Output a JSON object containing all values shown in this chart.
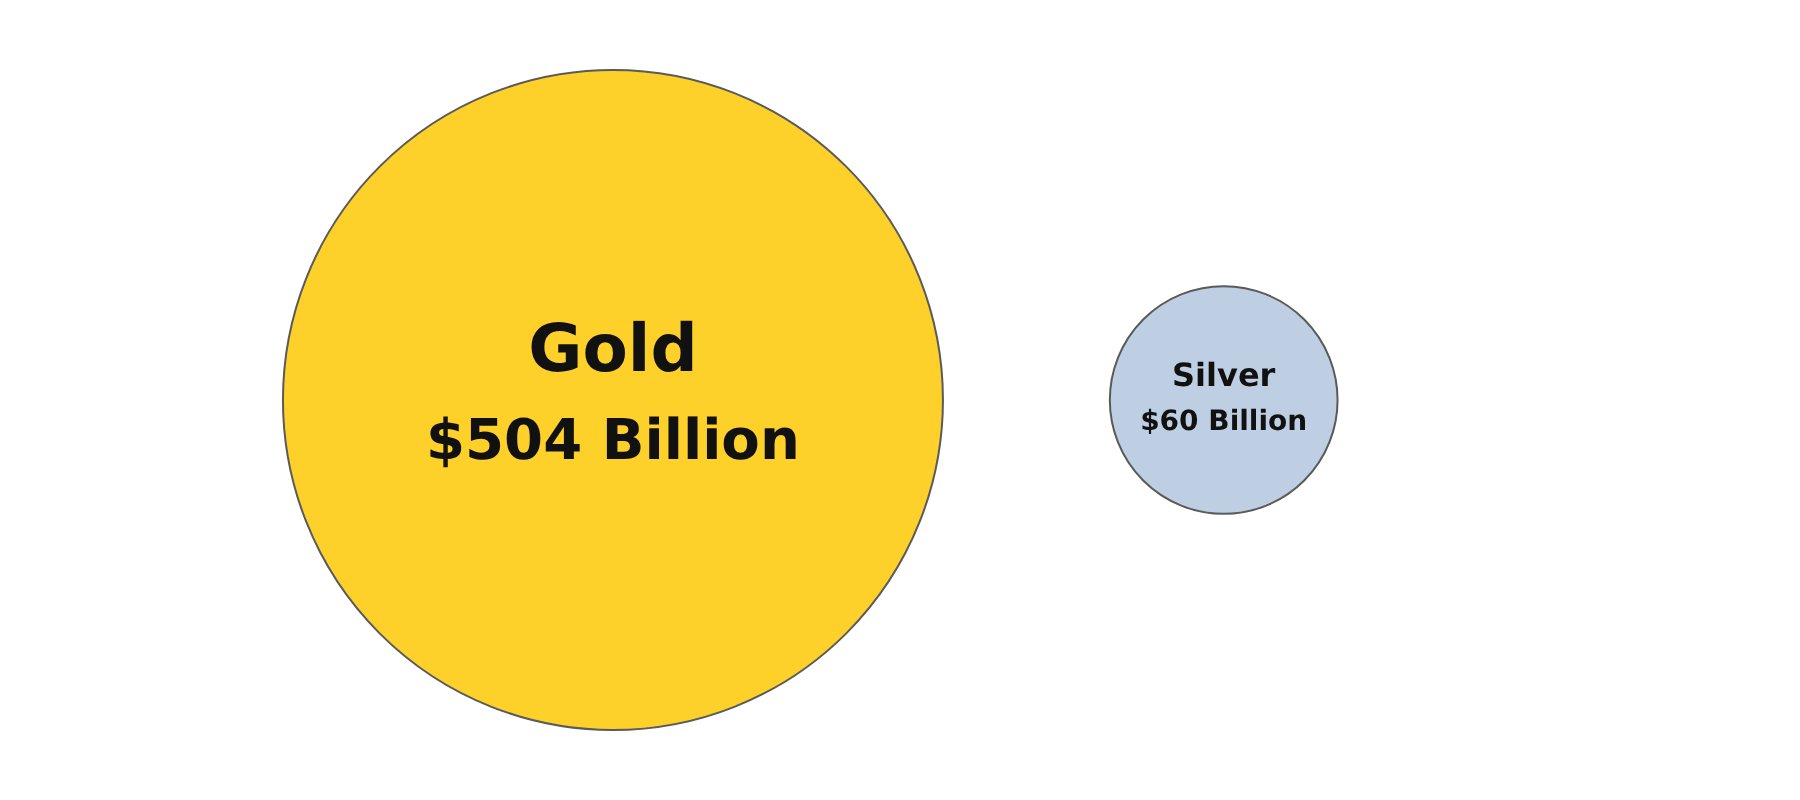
{
  "chart_data": {
    "type": "other",
    "categories": [
      "Gold",
      "Silver"
    ],
    "values": [
      504,
      60
    ],
    "value_labels": [
      "$504 Billion",
      "$60 Billion"
    ],
    "colors": [
      "#fdd02a",
      "#bfcfe3"
    ]
  }
}
